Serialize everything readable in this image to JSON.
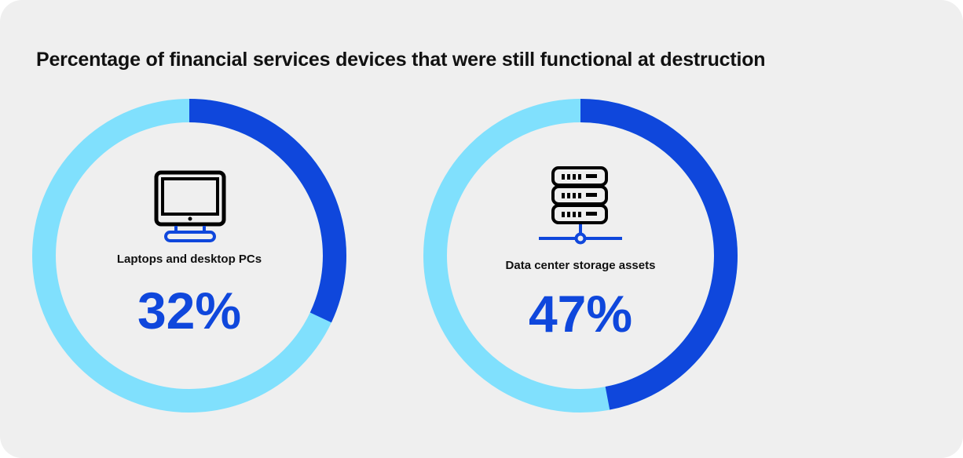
{
  "chart_data": {
    "type": "pie",
    "title": "Percentage of financial services devices that were still functional at destruction",
    "series": [
      {
        "name": "Laptops and desktop PCs",
        "value": 32,
        "label": "32%",
        "icon": "desktop-monitor-icon"
      },
      {
        "name": "Data center storage assets",
        "value": 47,
        "label": "47%",
        "icon": "server-rack-icon"
      }
    ],
    "colors": {
      "filled": "#0f47dc",
      "remainder": "#80e0fd",
      "value_text": "#0f47dc"
    }
  }
}
